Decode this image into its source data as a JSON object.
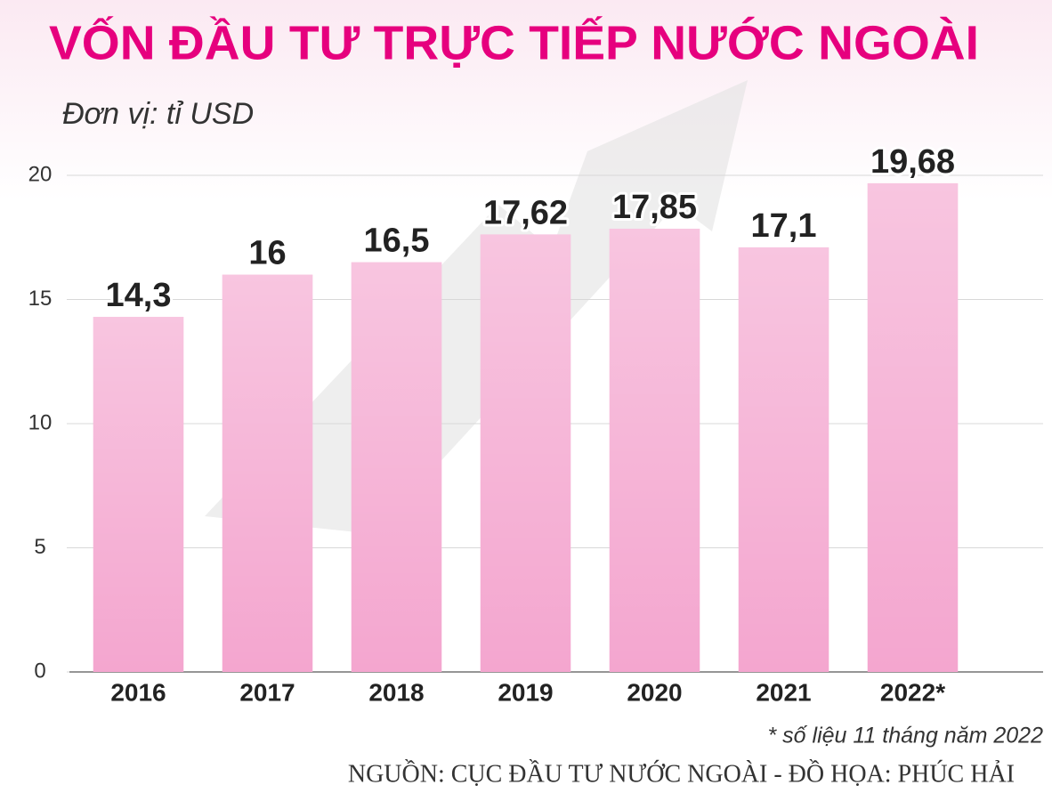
{
  "chart_data": {
    "type": "bar",
    "title": "VỐN ĐẦU TƯ TRỰC TIẾP NƯỚC NGOÀI",
    "subtitle": "Đơn vị: tỉ USD",
    "categories": [
      "2016",
      "2017",
      "2018",
      "2019",
      "2020",
      "2021",
      "2022*"
    ],
    "values": [
      14.3,
      16,
      16.5,
      17.62,
      17.85,
      17.1,
      19.68
    ],
    "value_labels": [
      "14,3",
      "16",
      "16,5",
      "17,62",
      "17,85",
      "17,1",
      "19,68"
    ],
    "color": "#f4a6cf",
    "ylim": [
      0,
      20
    ],
    "yticks": [
      0,
      5,
      10,
      15,
      20
    ],
    "grid": true,
    "footnote": "* số liệu 11 tháng năm 2022",
    "source": "NGUỒN: CỤC ĐẦU TƯ NƯỚC NGOÀI - ĐỒ HỌA: PHÚC HẢI"
  }
}
